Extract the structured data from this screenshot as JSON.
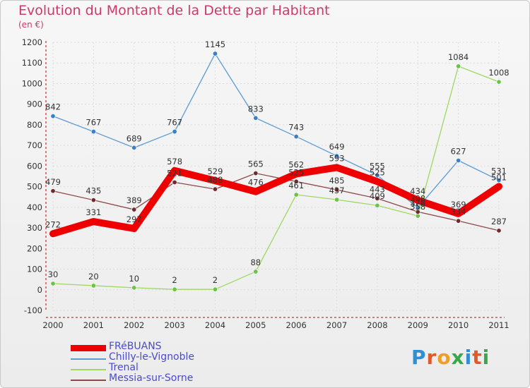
{
  "title": "Evolution du Montant de la Dette par Habitant",
  "unit": "(en €)",
  "logo": {
    "text": "Proxiti",
    "letter_colors": [
      "#2f8fd6",
      "#e05a2a",
      "#f0a020",
      "#3aa84a",
      "#2f8fd6",
      "#e05a2a",
      "#3aa84a"
    ]
  },
  "chart_data": {
    "type": "line",
    "title": "Evolution du Montant de la Dette par Habitant",
    "ylabel": "(en €)",
    "xlabel": "",
    "x": [
      "2000",
      "2001",
      "2002",
      "2003",
      "2004",
      "2005",
      "2006",
      "2007",
      "2008",
      "2009",
      "2010",
      "2011"
    ],
    "ylim": [
      -100,
      1200
    ],
    "yticks": [
      "-100",
      "0",
      "100",
      "200",
      "300",
      "400",
      "500",
      "600",
      "700",
      "800",
      "900",
      "1000",
      "1100",
      "1200"
    ],
    "grid": true,
    "legend_position": "bottom-left",
    "series": [
      {
        "name": "FRéBUANS",
        "color": "#ee0000",
        "bold": true,
        "values": [
          272,
          331,
          297,
          578,
          529,
          476,
          562,
          593,
          525,
          434,
          369,
          501
        ],
        "labels": [
          "272",
          "331",
          "297",
          "578",
          "529",
          "476",
          "562",
          "593",
          "525",
          "434",
          "369",
          "501"
        ]
      },
      {
        "name": "Chilly-le-Vignoble",
        "color": "#5b9bd5",
        "marker": "#3b7fc4",
        "values": [
          842,
          767,
          689,
          767,
          1145,
          833,
          743,
          649,
          555,
          398,
          627,
          531
        ],
        "labels": [
          "842",
          "767",
          "689",
          "767",
          "1145",
          "833",
          "743",
          "649",
          "555",
          "398",
          "627",
          "531"
        ]
      },
      {
        "name": "Trenal",
        "color": "#9fd860",
        "marker": "#6cc24a",
        "values": [
          30,
          20,
          10,
          2,
          2,
          88,
          461,
          437,
          409,
          358,
          1084,
          1008
        ],
        "labels": [
          "30",
          "20",
          "10",
          "2",
          "2",
          "88",
          "461",
          "437",
          "409",
          "358",
          "1084",
          "1008"
        ]
      },
      {
        "name": "Messia-sur-Sorne",
        "color": "#8b4a4a",
        "marker": "#6e2c2c",
        "values": [
          479,
          435,
          389,
          521,
          488,
          565,
          525,
          485,
          443,
          378,
          334,
          287
        ],
        "labels": [
          "479",
          "435",
          "389",
          "521",
          "488",
          "565",
          "525",
          "485",
          "443",
          "378",
          "334",
          "287"
        ]
      }
    ]
  }
}
